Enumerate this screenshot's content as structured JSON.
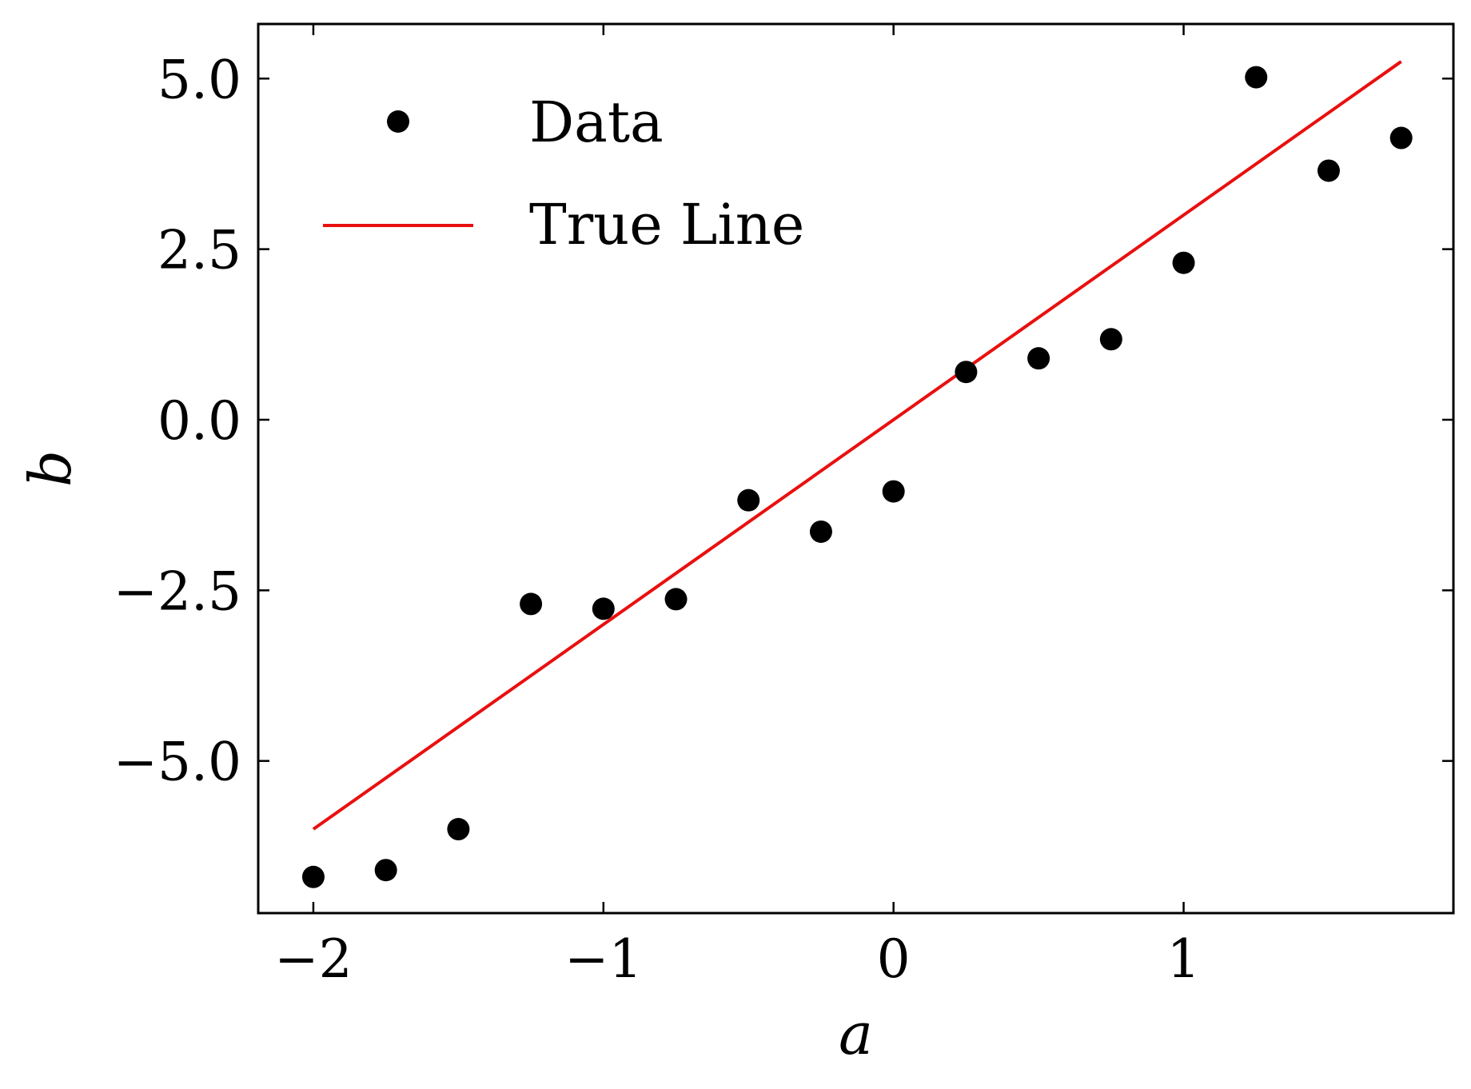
{
  "chart_data": {
    "type": "scatter",
    "title": "",
    "xlabel": "a",
    "ylabel": "b",
    "xlim": [
      -2.19,
      1.93
    ],
    "ylim": [
      -7.23,
      5.8
    ],
    "x_ticks": [
      {
        "value": -2,
        "label": "−2"
      },
      {
        "value": -1,
        "label": "−1"
      },
      {
        "value": 0,
        "label": "0"
      },
      {
        "value": 1,
        "label": "1"
      }
    ],
    "y_ticks": [
      {
        "value": 5.0,
        "label": "5.0"
      },
      {
        "value": 2.5,
        "label": "2.5"
      },
      {
        "value": 0.0,
        "label": "0.0"
      },
      {
        "value": -2.5,
        "label": "−2.5"
      },
      {
        "value": -5.0,
        "label": "−5.0"
      }
    ],
    "grid": false,
    "legend": {
      "position": "top-left",
      "entries": [
        {
          "label": "Data",
          "marker": "circle",
          "color": "#000000"
        },
        {
          "label": "True Line",
          "marker": "line",
          "color": "#e8100f"
        }
      ]
    },
    "series": [
      {
        "name": "Data",
        "kind": "scatter",
        "color": "#000000",
        "points": [
          {
            "x": -2.0,
            "y": -6.7
          },
          {
            "x": -1.75,
            "y": -6.6
          },
          {
            "x": -1.5,
            "y": -6.0
          },
          {
            "x": -1.25,
            "y": -2.7
          },
          {
            "x": -1.0,
            "y": -2.77
          },
          {
            "x": -0.75,
            "y": -2.63
          },
          {
            "x": -0.5,
            "y": -1.18
          },
          {
            "x": -0.25,
            "y": -1.64
          },
          {
            "x": 0.0,
            "y": -1.05
          },
          {
            "x": 0.25,
            "y": 0.7
          },
          {
            "x": 0.5,
            "y": 0.9
          },
          {
            "x": 0.75,
            "y": 1.18
          },
          {
            "x": 1.0,
            "y": 2.3
          },
          {
            "x": 1.25,
            "y": 5.02
          },
          {
            "x": 1.5,
            "y": 3.65
          },
          {
            "x": 1.75,
            "y": 4.13
          }
        ]
      },
      {
        "name": "True Line",
        "kind": "line",
        "color": "#e8100f",
        "points": [
          {
            "x": -2.0,
            "y": -6.0
          },
          {
            "x": 1.75,
            "y": 5.25
          }
        ]
      }
    ]
  }
}
